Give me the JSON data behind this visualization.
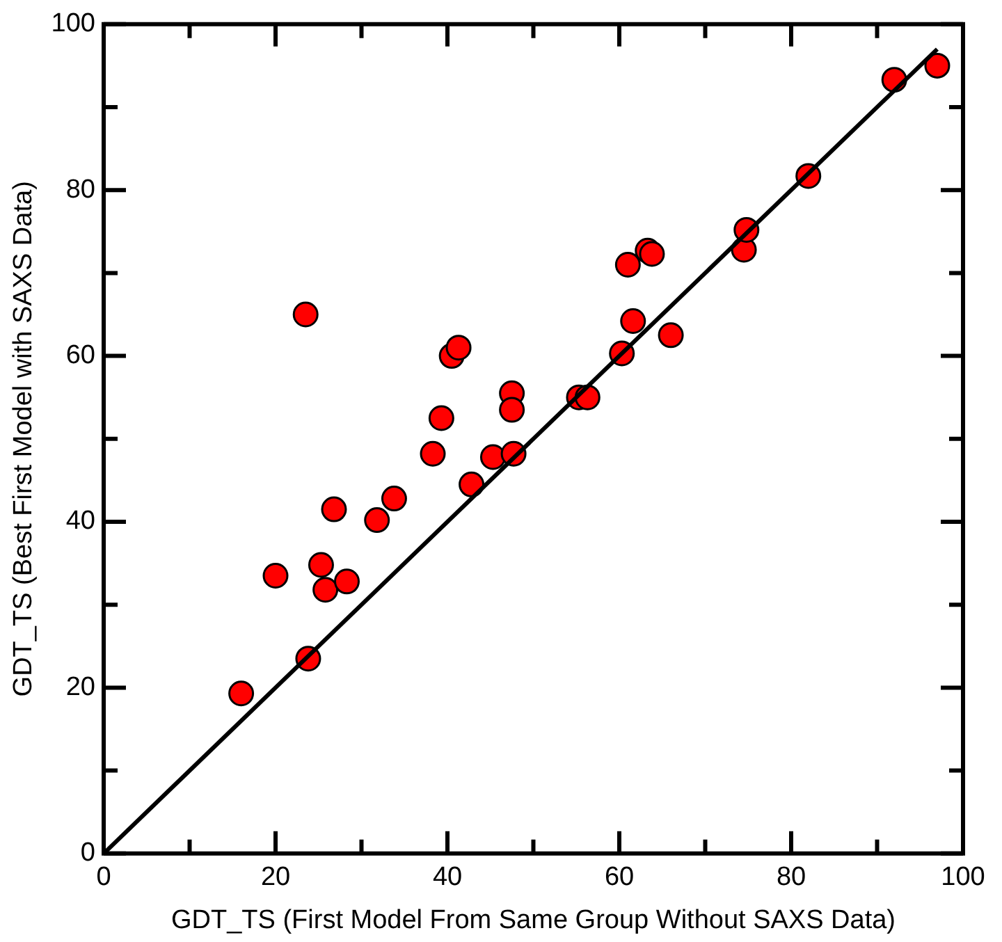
{
  "chart_data": {
    "type": "scatter",
    "xlabel": "GDT_TS (First Model From Same Group Without SAXS Data)",
    "ylabel": "GDT_TS (Best First Model with SAXS Data)",
    "xlim": [
      0,
      100
    ],
    "ylim": [
      0,
      100
    ],
    "xticks": [
      0,
      {
        "value": 10,
        "label": null
      },
      20,
      {
        "value": 30,
        "label": null
      },
      40,
      {
        "value": 50,
        "label": null
      },
      60,
      {
        "value": 70,
        "label": null
      },
      80,
      {
        "value": 90,
        "label": null
      },
      100
    ],
    "yticks": [
      0,
      {
        "value": 10,
        "label": null
      },
      20,
      {
        "value": 30,
        "label": null
      },
      40,
      {
        "value": 50,
        "label": null
      },
      60,
      {
        "value": 70,
        "label": null
      },
      80,
      {
        "value": 90,
        "label": null
      },
      100
    ],
    "grid": false,
    "legend": false,
    "marker": "circle",
    "series": [
      {
        "color": "#ff0000",
        "x": [
          16,
          20,
          23.5,
          23.8,
          25.3,
          25.8,
          26.8,
          28.3,
          31.8,
          33.8,
          38.3,
          39.3,
          40.5,
          41.3,
          42.8,
          45.3,
          47.5,
          47.5,
          47.7,
          55.3,
          56.3,
          60.3,
          61,
          61.6,
          63.3,
          63.8,
          66,
          74.5,
          74.8,
          82,
          92,
          97
        ],
        "values": [
          19.3,
          33.5,
          65,
          23.5,
          34.8,
          31.8,
          41.5,
          32.8,
          40.2,
          42.8,
          48.2,
          52.5,
          60,
          61,
          44.5,
          47.8,
          55.5,
          53.5,
          48.2,
          55,
          55,
          60.3,
          71,
          64.2,
          72.7,
          72.3,
          62.5,
          72.8,
          75.2,
          81.7,
          93.3,
          95
        ]
      },
      {
        "type": "line",
        "color": "#000000",
        "marker": "none",
        "line_style": "solid",
        "x": [
          0,
          97
        ],
        "values": [
          0,
          97
        ]
      }
    ]
  }
}
